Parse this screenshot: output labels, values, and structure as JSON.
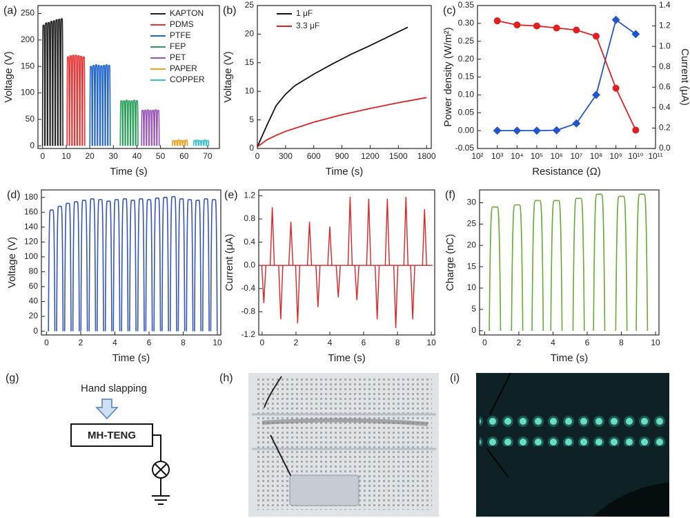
{
  "chart_data": [
    {
      "type": "pulse",
      "panel": "(a)",
      "xlabel": "Time (s)",
      "ylabel": "Voltage (V)",
      "xlim": [
        -2,
        75
      ],
      "ylim": [
        -5,
        265
      ],
      "xticks": [
        0,
        10,
        20,
        30,
        40,
        50,
        60,
        70
      ],
      "yticks": [
        0,
        50,
        100,
        150,
        200,
        250
      ],
      "legend": "upper right",
      "series": [
        {
          "name": "KAPTON",
          "color": "#222222",
          "x": [
            0.4,
            1.5,
            2.6,
            3.7,
            4.8,
            5.9,
            7.0,
            8.1
          ],
          "values": [
            228,
            232,
            233,
            235,
            236,
            238,
            239,
            240
          ]
        },
        {
          "name": "PDMS",
          "color": "#ee3333",
          "x": [
            10.8,
            11.9,
            13.0,
            14.1,
            15.2,
            16.3,
            17.4
          ],
          "values": [
            168,
            170,
            171,
            171,
            170,
            169,
            168
          ]
        },
        {
          "name": "PTFE",
          "color": "#2266cc",
          "x": [
            20.5,
            21.6,
            22.7,
            23.8,
            24.9,
            26.0,
            27.1,
            28.2
          ],
          "values": [
            150,
            152,
            153,
            152,
            151,
            152,
            153,
            152
          ]
        },
        {
          "name": "FEP",
          "color": "#2aa05a",
          "x": [
            33.4,
            34.5,
            35.6,
            36.7,
            37.8,
            38.9,
            40.0
          ],
          "values": [
            85,
            85,
            86,
            85,
            85,
            86,
            85
          ]
        },
        {
          "name": "PET",
          "color": "#9a55bb",
          "x": [
            42.4,
            43.5,
            44.6,
            45.7,
            46.8,
            47.9,
            49.0
          ],
          "values": [
            67,
            67,
            68,
            67,
            67,
            68,
            67
          ]
        },
        {
          "name": "PAPER",
          "color": "#f0a020",
          "x": [
            55.5,
            56.6,
            57.7,
            58.8,
            59.9,
            61.0
          ],
          "values": [
            10,
            10,
            11,
            10,
            10,
            11
          ]
        },
        {
          "name": "COPPER",
          "color": "#33c0cc",
          "x": [
            64.5,
            65.6,
            66.7,
            67.8,
            68.9,
            70.0
          ],
          "values": [
            10,
            11,
            10,
            10,
            11,
            10
          ]
        }
      ]
    },
    {
      "type": "line",
      "panel": "(b)",
      "xlabel": "Time (s)",
      "ylabel": "Voltage (V)",
      "xlim": [
        0,
        1850
      ],
      "ylim": [
        0,
        25
      ],
      "xticks": [
        0,
        300,
        600,
        900,
        1200,
        1500,
        1800
      ],
      "yticks": [
        0,
        5,
        10,
        15,
        20,
        25
      ],
      "legend": "upper left",
      "series": [
        {
          "name": "1 μF",
          "color": "#111111",
          "x": [
            0,
            100,
            200,
            300,
            400,
            600,
            800,
            1000,
            1200,
            1400,
            1600
          ],
          "values": [
            0.3,
            4,
            7.5,
            9.5,
            11,
            13,
            14.8,
            16.5,
            18,
            19.6,
            21.2
          ]
        },
        {
          "name": "3.3 μF",
          "color": "#e02020",
          "x": [
            0,
            100,
            200,
            300,
            600,
            900,
            1200,
            1500,
            1800
          ],
          "values": [
            0.3,
            1.5,
            2.3,
            3,
            4.6,
            5.9,
            7,
            8,
            8.9
          ]
        }
      ]
    },
    {
      "type": "line",
      "panel": "(c)",
      "xlabel": "Resistance (Ω)",
      "ylabel": "Power density (W/m²)",
      "y2label": "Current (μA)",
      "xlog": true,
      "xlim": [
        100,
        100000000000
      ],
      "ylim": [
        -0.05,
        0.35
      ],
      "y2lim": [
        0,
        1.4
      ],
      "xticks": [
        {
          "value": 100,
          "label": "10²"
        },
        {
          "value": 1000,
          "label": "10³"
        },
        {
          "value": 10000,
          "label": "10⁴"
        },
        {
          "value": 100000,
          "label": "10⁵"
        },
        {
          "value": 1000000,
          "label": "10⁶"
        },
        {
          "value": 10000000,
          "label": "10⁷"
        },
        {
          "value": 100000000,
          "label": "10⁸"
        },
        {
          "value": 1000000000,
          "label": "10⁹"
        },
        {
          "value": 10000000000,
          "label": "10¹⁰"
        },
        {
          "value": 100000000000,
          "label": "10¹¹"
        }
      ],
      "yticks": [
        -0.05,
        {
          "value": 0,
          "label": "0.00"
        },
        0.05,
        {
          "value": 0.1,
          "label": "0.10"
        },
        0.15,
        {
          "value": 0.2,
          "label": "0.20"
        },
        0.25,
        {
          "value": 0.3,
          "label": "0.30"
        },
        0.35
      ],
      "y2ticks": [
        {
          "value": 0,
          "label": "0.0"
        },
        0.2,
        0.4,
        0.6,
        0.8,
        {
          "value": 1,
          "label": "1.0"
        },
        1.2,
        1.4
      ],
      "series": [
        {
          "color": "#2255cc",
          "marker": "diamond",
          "x": [
            1000,
            10000,
            100000,
            1000000,
            10000000,
            100000000,
            1000000000,
            10000000000
          ],
          "values": [
            0,
            0,
            0,
            0.001,
            0.02,
            0.1,
            0.31,
            0.27
          ]
        },
        {
          "color": "#e02020",
          "marker": "circle",
          "axis": "y2",
          "x": [
            1000,
            10000,
            100000,
            1000000,
            10000000,
            100000000,
            1000000000,
            10000000000
          ],
          "values": [
            1.25,
            1.21,
            1.2,
            1.18,
            1.16,
            1.1,
            0.59,
            0.18
          ]
        }
      ]
    },
    {
      "type": "pulse",
      "panel": "(d)",
      "xlabel": "Time (s)",
      "ylabel": "Voltage (V)",
      "xlim": [
        -0.3,
        10.2
      ],
      "ylim": [
        -5,
        190
      ],
      "xticks": [
        0,
        2,
        4,
        6,
        8,
        10
      ],
      "yticks": [
        0,
        20,
        40,
        60,
        80,
        100,
        120,
        140,
        160,
        180
      ],
      "series": [
        {
          "color": "#3355bb",
          "x": [
            0.3,
            0.78,
            1.25,
            1.73,
            2.2,
            2.68,
            3.15,
            3.63,
            4.1,
            4.58,
            5.05,
            5.53,
            6.0,
            6.48,
            6.95,
            7.43,
            7.9,
            8.38,
            8.85,
            9.33,
            9.8
          ],
          "values": [
            163,
            168,
            172,
            174,
            176,
            178,
            177,
            175,
            177,
            178,
            176,
            178,
            177,
            179,
            180,
            181,
            178,
            177,
            176,
            178,
            177
          ]
        }
      ]
    },
    {
      "type": "spike",
      "panel": "(e)",
      "xlabel": "Time (s)",
      "ylabel": "Current (μA)",
      "xlim": [
        -0.2,
        10.2
      ],
      "ylim": [
        -1.2,
        1.3
      ],
      "xticks": [
        0,
        2,
        4,
        6,
        8,
        10
      ],
      "yticks": [
        -1.2,
        -0.8,
        -0.4,
        {
          "value": 0,
          "label": "0.0"
        },
        0.4,
        0.8,
        1.2
      ],
      "series": [
        {
          "color": "#dd2222",
          "x": [
            0.6,
            1.7,
            2.8,
            4.0,
            5.2,
            6.3,
            7.4,
            8.5,
            9.6
          ],
          "values": [
            1.0,
            0.75,
            0.75,
            0.67,
            1.18,
            1.15,
            1.15,
            1.18,
            0.97
          ]
        },
        {
          "color": "#dd2222",
          "x": [
            0.1,
            1.1,
            2.1,
            3.3,
            4.5,
            5.6,
            6.8,
            7.9,
            8.9
          ],
          "values": [
            -0.65,
            -0.93,
            -1.0,
            -0.72,
            -0.55,
            -0.6,
            -0.93,
            -1.08,
            -0.93
          ]
        }
      ]
    },
    {
      "type": "pulse",
      "panel": "(f)",
      "xlabel": "Time (s)",
      "ylabel": "Charge (nC)",
      "xlim": [
        -0.3,
        10.2
      ],
      "ylim": [
        -1,
        33
      ],
      "xticks": [
        0,
        2,
        4,
        6,
        8,
        10
      ],
      "yticks": [
        0,
        5,
        10,
        15,
        20,
        25,
        30
      ],
      "series": [
        {
          "color": "#66aa33",
          "x": [
            0.6,
            1.9,
            3.1,
            4.2,
            5.5,
            6.7,
            8.0,
            9.2
          ],
          "values": [
            29,
            29.5,
            30.5,
            30.5,
            31,
            32,
            31.5,
            32
          ]
        }
      ]
    }
  ],
  "diagram": {
    "g": {
      "panel": "(g)",
      "input": "Hand slapping",
      "device": "MH-TENG"
    },
    "h": {
      "panel": "(h)"
    },
    "i": {
      "panel": "(i)"
    }
  }
}
